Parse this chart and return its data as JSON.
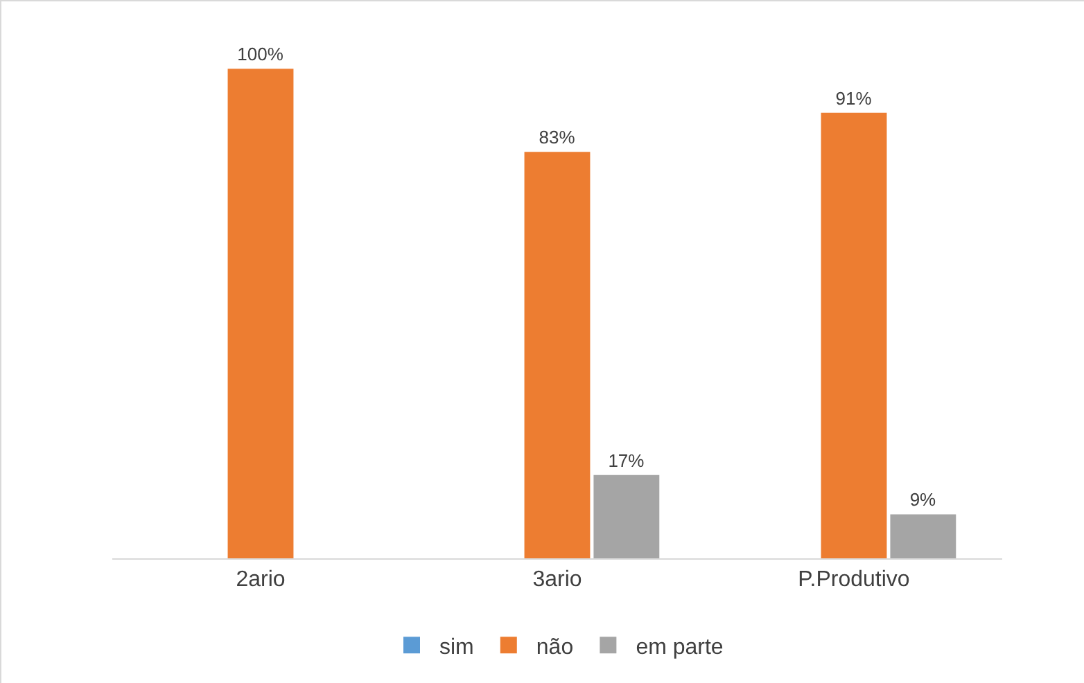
{
  "chart_data": {
    "type": "bar",
    "categories": [
      "2ario",
      "3ario",
      "P.Produtivo"
    ],
    "series": [
      {
        "name": "sim",
        "color": "#5b9bd5",
        "values": [
          0,
          0,
          0
        ]
      },
      {
        "name": "não",
        "color": "#ed7d31",
        "values": [
          100,
          83,
          91
        ],
        "value_labels": [
          "100%",
          "83%",
          "91%"
        ]
      },
      {
        "name": "em parte",
        "color": "#a5a5a5",
        "values": [
          0,
          17,
          9
        ],
        "value_labels": [
          null,
          "17%",
          "9%"
        ]
      }
    ],
    "legend": "bottom",
    "grid": false
  }
}
